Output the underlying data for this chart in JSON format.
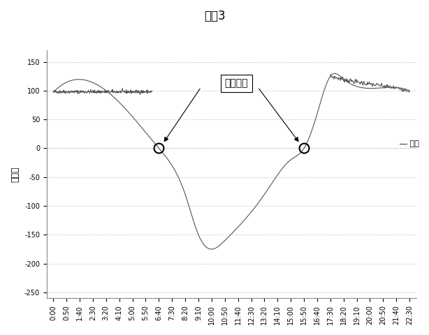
{
  "title": "図　3",
  "ylabel": "潮電量",
  "legend_label": "― 時間",
  "annotation_text": "潮流反転",
  "x_labels": [
    "0:00",
    "0:50",
    "1:40",
    "2:30",
    "3:20",
    "4:10",
    "5:00",
    "5:50",
    "6:40",
    "7:30",
    "8:20",
    "9:10",
    "10:00",
    "10:50",
    "11:40",
    "12:30",
    "13:20",
    "14:10",
    "15:00",
    "15:50",
    "16:40",
    "17:30",
    "18:20",
    "19:10",
    "20:00",
    "20:50",
    "21:40",
    "22:30"
  ],
  "ylim": [
    -260,
    170
  ],
  "yticks": [
    -250,
    -200,
    -150,
    -100,
    -50,
    0,
    50,
    100,
    150
  ],
  "line_color": "#555555",
  "bg_color": "#ffffff",
  "grid_color": "#aaaaaa",
  "circle_color": "#000000",
  "zero_cross1_idx": 8,
  "zero_cross2_idx": 19,
  "title_fontsize": 12,
  "label_fontsize": 9,
  "tick_fontsize": 7
}
